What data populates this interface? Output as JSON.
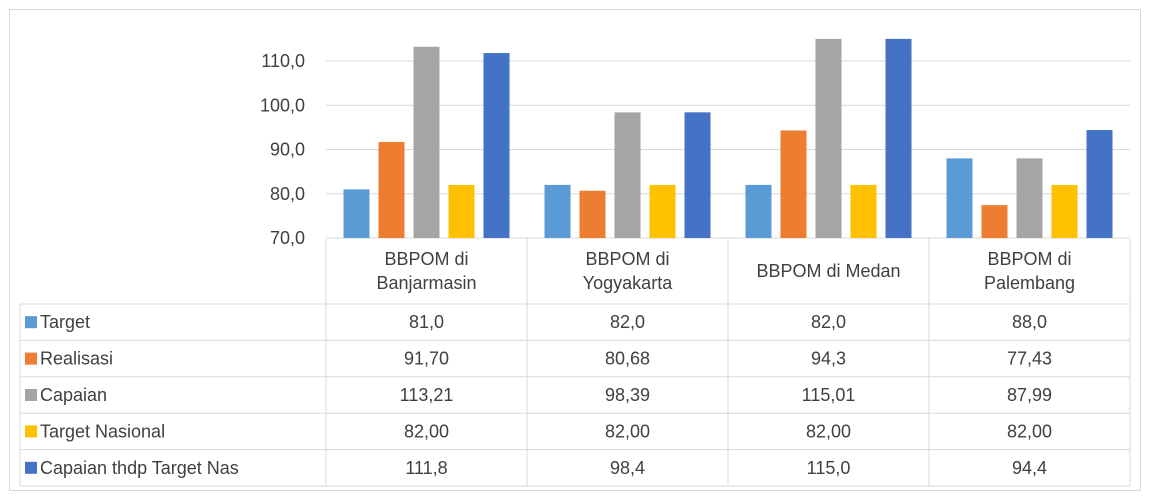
{
  "chart_data": {
    "type": "bar",
    "title": "",
    "xlabel": "",
    "ylabel": "",
    "ylim": [
      70,
      115
    ],
    "yticks": [
      70,
      80,
      90,
      100,
      110
    ],
    "ytick_labels": [
      "70,0",
      "80,0",
      "90,0",
      "100,0",
      "110,0"
    ],
    "grid": true,
    "legend": "data table",
    "categories": [
      [
        "BBPOM di",
        "Banjarmasin"
      ],
      [
        "BBPOM di",
        "Yogyakarta"
      ],
      [
        "BBPOM di Medan"
      ],
      [
        "BBPOM di",
        "Palembang"
      ]
    ],
    "series": [
      {
        "name": "Target",
        "color": "#5b9bd5",
        "values": [
          81.0,
          82.0,
          82.0,
          88.0
        ],
        "labels": [
          "81,0",
          "82,0",
          "82,0",
          "88,0"
        ]
      },
      {
        "name": "Realisasi",
        "color": "#ed7d31",
        "values": [
          91.7,
          80.68,
          94.3,
          77.43
        ],
        "labels": [
          "91,70",
          "80,68",
          "94,3",
          "77,43"
        ]
      },
      {
        "name": "Capaian",
        "color": "#a5a5a5",
        "values": [
          113.21,
          98.39,
          115.01,
          87.99
        ],
        "labels": [
          "113,21",
          "98,39",
          "115,01",
          "87,99"
        ]
      },
      {
        "name": "Target Nasional",
        "color": "#ffc000",
        "values": [
          82.0,
          82.0,
          82.0,
          82.0
        ],
        "labels": [
          "82,00",
          "82,00",
          "82,00",
          "82,00"
        ]
      },
      {
        "name": "Capaian thdp Target Nas",
        "color": "#4472c4",
        "values": [
          111.8,
          98.4,
          115.0,
          94.4
        ],
        "labels": [
          "111,8",
          "98,4",
          "115,0",
          "94,4"
        ]
      }
    ]
  }
}
